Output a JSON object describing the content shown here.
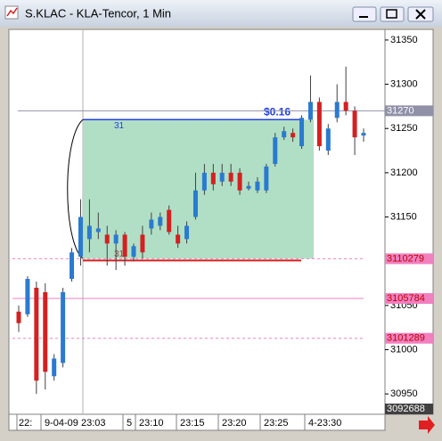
{
  "window": {
    "title": "S.KLAC - KLA-Tencor, 1 Min"
  },
  "chart_data": {
    "type": "candlestick",
    "open": [
      31.043,
      31.04,
      31.07,
      31.065,
      30.97,
      30.985,
      31.08,
      31.105,
      31.125,
      31.133,
      31.13,
      31.12,
      31.13,
      31.105,
      31.13,
      31.137,
      31.14,
      31.158,
      31.13,
      31.125,
      31.15,
      31.18,
      31.2,
      31.19,
      31.2,
      31.2,
      31.182,
      31.18,
      31.18,
      31.21,
      31.24,
      31.245,
      31.23,
      31.26,
      31.28,
      31.225,
      31.262,
      31.28,
      31.27,
      31.242
    ],
    "high": [
      31.05,
      31.083,
      31.077,
      31.075,
      30.995,
      31.07,
      31.115,
      31.17,
      31.17,
      31.155,
      31.14,
      31.135,
      31.133,
      31.12,
      31.14,
      31.155,
      31.155,
      31.163,
      31.14,
      31.145,
      31.2,
      31.21,
      31.21,
      31.21,
      31.21,
      31.205,
      31.19,
      31.195,
      31.21,
      31.245,
      31.252,
      31.25,
      31.265,
      31.31,
      31.285,
      31.255,
      31.3,
      31.32,
      31.275,
      31.25
    ],
    "low": [
      31.02,
      31.037,
      30.95,
      30.955,
      30.965,
      30.98,
      31.077,
      31.095,
      31.11,
      31.125,
      31.095,
      31.09,
      31.095,
      31.1,
      31.103,
      31.13,
      31.135,
      31.13,
      31.115,
      31.12,
      31.147,
      31.175,
      31.18,
      31.185,
      31.185,
      31.175,
      31.18,
      31.177,
      31.177,
      31.207,
      31.237,
      31.235,
      31.227,
      31.257,
      31.225,
      31.22,
      31.257,
      31.265,
      31.22,
      31.235
    ],
    "close": [
      31.03,
      31.08,
      30.965,
      30.975,
      30.99,
      31.065,
      31.11,
      31.15,
      31.14,
      31.137,
      31.12,
      31.13,
      31.105,
      31.117,
      31.11,
      31.147,
      31.15,
      31.133,
      31.12,
      31.14,
      31.18,
      31.2,
      31.187,
      31.2,
      31.19,
      31.18,
      31.185,
      31.19,
      31.207,
      31.24,
      31.247,
      31.24,
      31.262,
      31.28,
      31.23,
      31.25,
      31.28,
      31.27,
      31.24,
      31.245
    ],
    "up_color": "#2a7ad0",
    "down_color": "#d42020",
    "ylim": [
      30.927,
      31.362
    ],
    "yticks": [
      {
        "value": 31.35,
        "label": "31350"
      },
      {
        "value": 31.3,
        "label": "31300"
      },
      {
        "value": 31.25,
        "label": "31250"
      },
      {
        "value": 31.2,
        "label": "31200"
      },
      {
        "value": 31.15,
        "label": "31150"
      },
      {
        "value": 31.1,
        "label": "31100"
      },
      {
        "value": 31.05,
        "label": "31050"
      },
      {
        "value": 31.0,
        "label": "31000"
      },
      {
        "value": 30.95,
        "label": "30950"
      }
    ],
    "levels": [
      {
        "value": 31.27,
        "label": "31270",
        "color": "#9090a8",
        "dashed": false
      },
      {
        "value": 31.10279,
        "label": "3110279",
        "color": "#f080c0",
        "dashed": true
      },
      {
        "value": 31.05784,
        "label": "3105784",
        "color": "#f080c0",
        "dashed": false
      },
      {
        "value": 31.01289,
        "label": "3101289",
        "color": "#f080c0",
        "dashed": true
      },
      {
        "value": 30.92688,
        "label": "3092688",
        "color": "#404040",
        "dashed": false
      }
    ],
    "measure": {
      "low": 31.1028,
      "high": 31.26,
      "label": "$0.16",
      "high_label": "31",
      "low_label": "31"
    },
    "time_labels": [
      "22:",
      "9-04-09 23:03",
      "5",
      "23:10",
      "23:15",
      "23:20",
      "23:25",
      "4-23:30"
    ]
  }
}
